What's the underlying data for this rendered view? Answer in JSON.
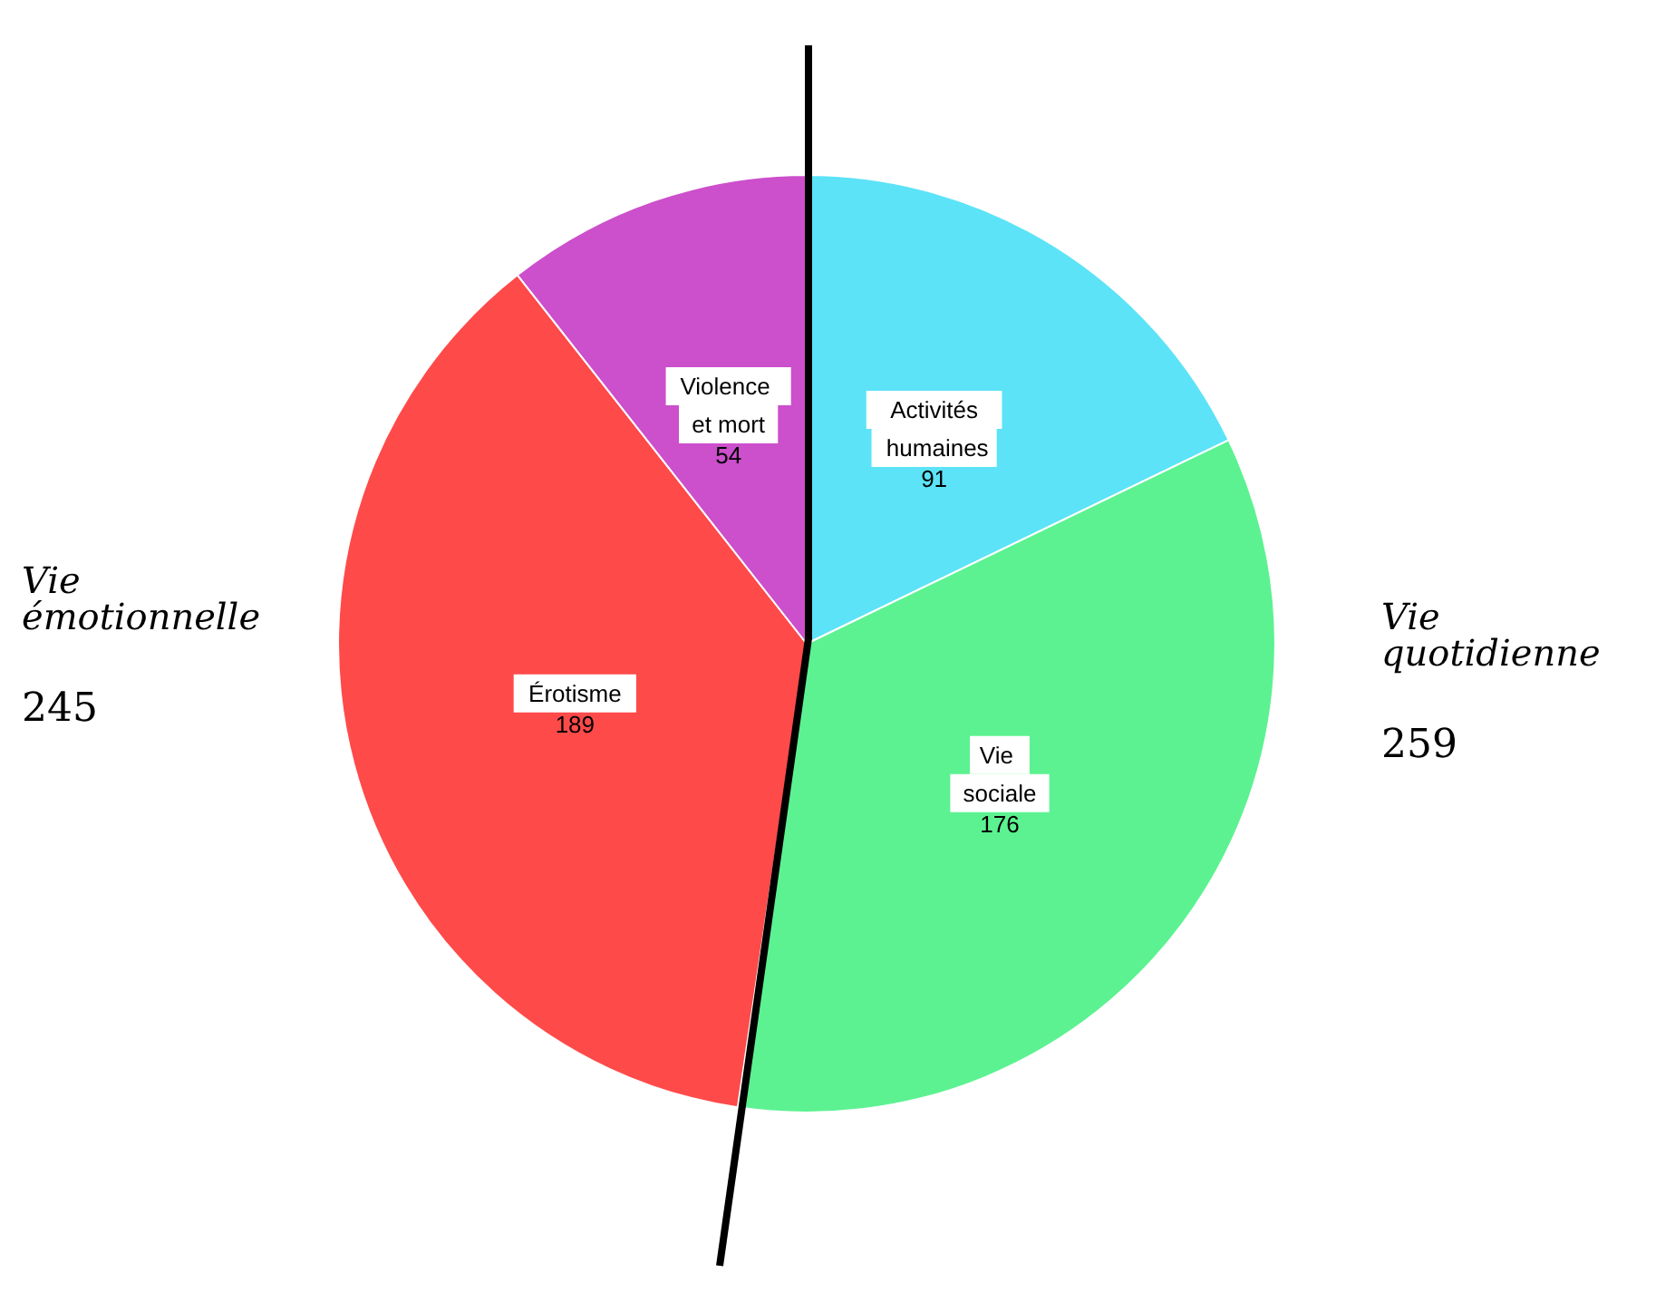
{
  "chart_data": {
    "type": "pie",
    "categories": [
      "Activités humaines",
      "Vie sociale",
      "Érotisme",
      "Violence et mort"
    ],
    "values": [
      91,
      176,
      189,
      54
    ],
    "colors": [
      "#5ce3f7",
      "#5cf291",
      "#ff4a4a",
      "#cc4fcc"
    ],
    "data_labels": true,
    "legend": false,
    "annotations": [
      "Vie émotionnelle",
      "245",
      "Vie quotidienne",
      "259"
    ]
  }
}
